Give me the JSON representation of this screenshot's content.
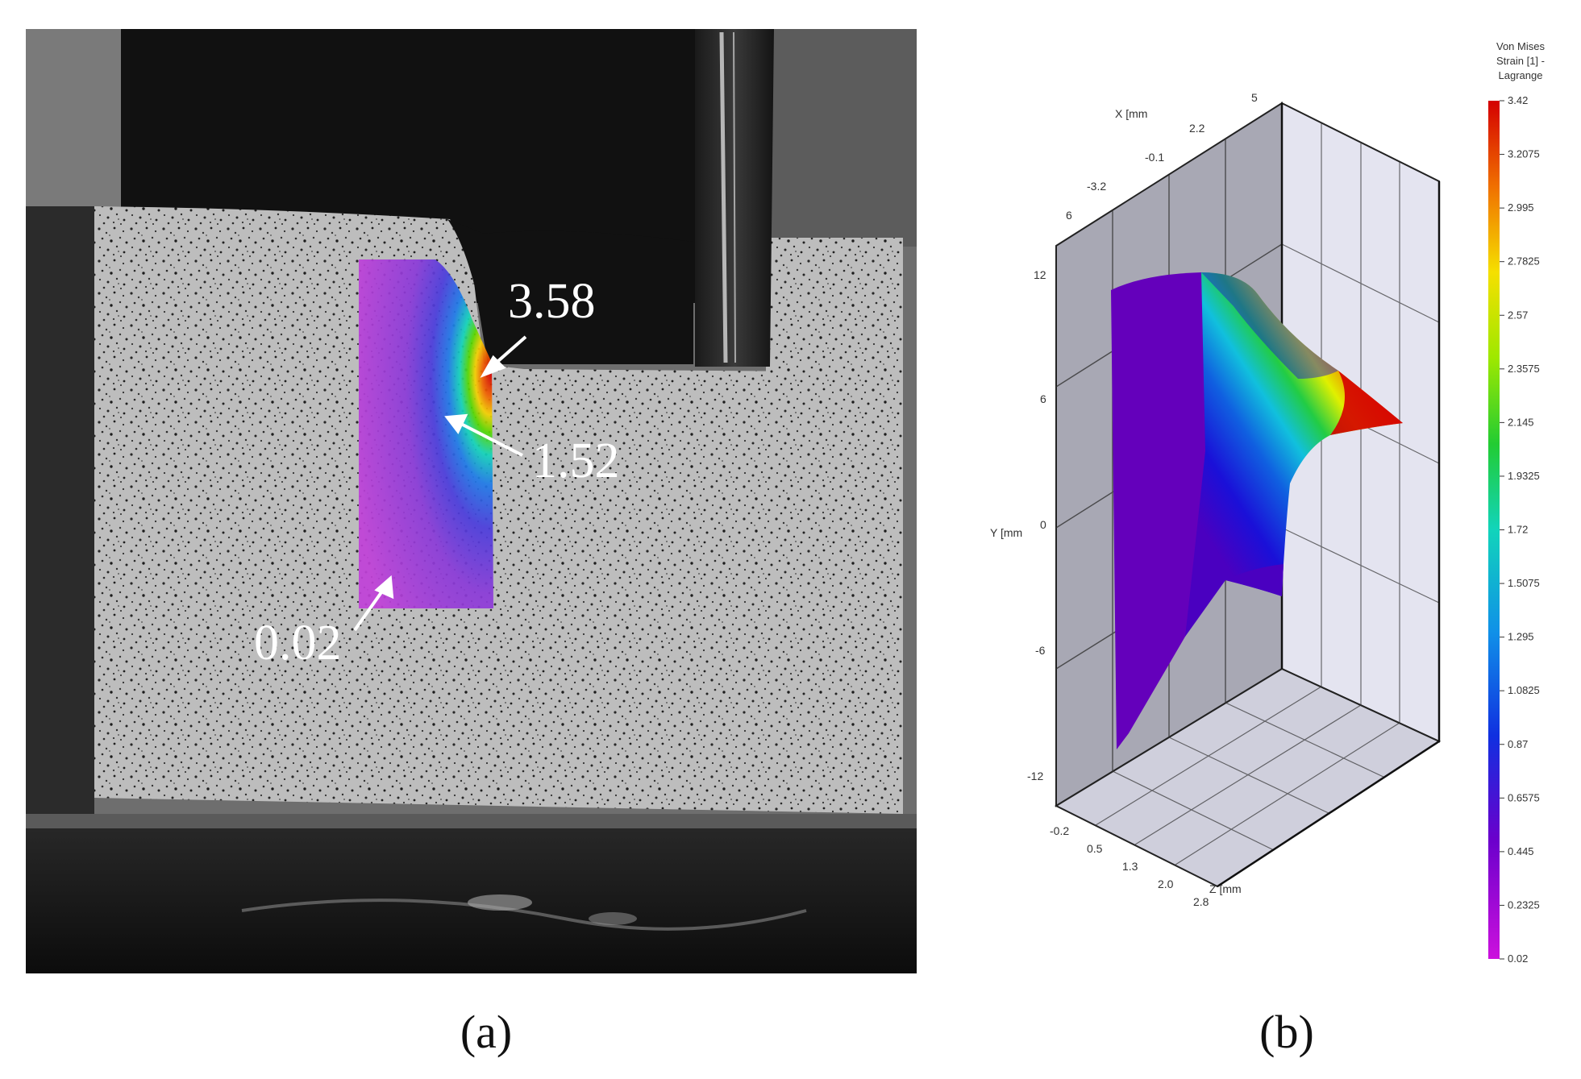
{
  "panel_a": {
    "label": "(a)",
    "annotations": [
      {
        "id": "max",
        "text": "3.58"
      },
      {
        "id": "mid",
        "text": "1.52"
      },
      {
        "id": "min",
        "text": "0.02"
      }
    ]
  },
  "panel_b": {
    "label": "(b)",
    "colorbar": {
      "title_lines": [
        "Von Mises",
        "Strain [1] -",
        "Lagrange"
      ],
      "ticks": [
        "3.42",
        "3.2075",
        "2.995",
        "2.7825",
        "2.57",
        "2.3575",
        "2.145",
        "1.9325",
        "1.72",
        "1.5075",
        "1.295",
        "1.0825",
        "0.87",
        "0.6575",
        "0.445",
        "0.2325",
        "0.02"
      ],
      "range": [
        0.02,
        3.42
      ],
      "colors": [
        "#d40000",
        "#e03a00",
        "#f08a00",
        "#f5c800",
        "#e8f000",
        "#a8e800",
        "#55d800",
        "#22cc33",
        "#11cc88",
        "#11d4cc",
        "#11b0e8",
        "#1080e8",
        "#1050e0",
        "#1a10d8",
        "#5500cc",
        "#8800cc",
        "#b000c8",
        "#cc11dd"
      ]
    },
    "axes": {
      "x_label": "X [mm",
      "x_ticks": [
        "-3.2",
        "-0.1",
        "2.2",
        "5"
      ],
      "y_label": "Y [mm",
      "y_ticks": [
        "12",
        "6",
        "0",
        "-6",
        "-12"
      ],
      "z_label": "Z [mm",
      "z_ticks": [
        "-0.2",
        "0.5",
        "1.3",
        "2.0",
        "2.8"
      ],
      "top_tick": "6"
    }
  }
}
